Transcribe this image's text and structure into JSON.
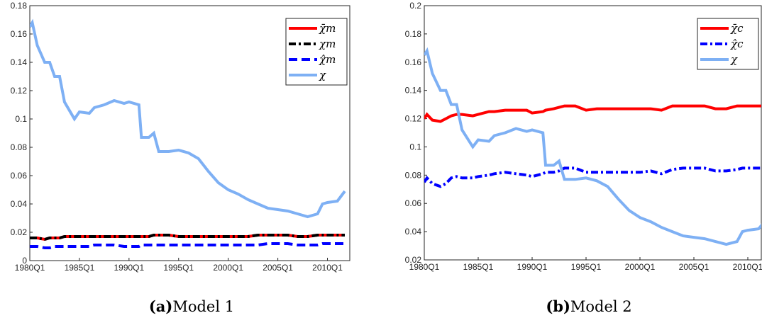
{
  "chart_data": [
    {
      "type": "line",
      "caption_label": "(a)",
      "caption": "Model 1",
      "x": [
        "1980Q1",
        "1980Q2",
        "1980Q4",
        "1981Q3",
        "1982Q1",
        "1982Q3",
        "1983Q1",
        "1983Q3",
        "1984Q3",
        "1985Q1",
        "1986Q1",
        "1986Q3",
        "1987Q3",
        "1988Q3",
        "1989Q3",
        "1990Q1",
        "1991Q1",
        "1991Q2",
        "1992Q1",
        "1992Q3",
        "1993Q1",
        "1994Q1",
        "1995Q1",
        "1996Q1",
        "1997Q1",
        "1998Q1",
        "1999Q1",
        "2000Q1",
        "2001Q1",
        "2002Q1",
        "2003Q1",
        "2004Q1",
        "2005Q1",
        "2006Q1",
        "2007Q1",
        "2008Q1",
        "2009Q1",
        "2009Q3",
        "2010Q1",
        "2011Q1",
        "2011Q4"
      ],
      "xlim": [
        "1980Q1",
        "2012Q2"
      ],
      "xticks": [
        "1980Q1",
        "1985Q1",
        "1990Q1",
        "1995Q1",
        "2000Q1",
        "2005Q1",
        "2010Q1"
      ],
      "ylim": [
        0,
        0.18
      ],
      "yticks": [
        0,
        0.02,
        0.04,
        0.06,
        0.08,
        0.1,
        0.12,
        0.14,
        0.16,
        0.18
      ],
      "legend": "northeast",
      "series": [
        {
          "name": "χ̄m",
          "color": "#ff0000",
          "style": "solid",
          "values": [
            0.016,
            0.016,
            0.016,
            0.015,
            0.016,
            0.016,
            0.016,
            0.017,
            0.017,
            0.017,
            0.017,
            0.017,
            0.017,
            0.017,
            0.017,
            0.017,
            0.017,
            0.017,
            0.017,
            0.018,
            0.018,
            0.018,
            0.017,
            0.017,
            0.017,
            0.017,
            0.017,
            0.017,
            0.017,
            0.017,
            0.018,
            0.018,
            0.018,
            0.018,
            0.017,
            0.017,
            0.018,
            0.018,
            0.018,
            0.018,
            0.018
          ]
        },
        {
          "name": "χm",
          "color": "#000000",
          "style": "dashdot",
          "values": [
            0.016,
            0.016,
            0.016,
            0.015,
            0.016,
            0.016,
            0.016,
            0.017,
            0.017,
            0.017,
            0.017,
            0.017,
            0.017,
            0.017,
            0.017,
            0.017,
            0.017,
            0.017,
            0.017,
            0.018,
            0.018,
            0.018,
            0.017,
            0.017,
            0.017,
            0.017,
            0.017,
            0.017,
            0.017,
            0.017,
            0.018,
            0.018,
            0.018,
            0.018,
            0.017,
            0.017,
            0.018,
            0.018,
            0.018,
            0.018,
            0.018
          ]
        },
        {
          "name": "χ̂m",
          "color": "#0000ff",
          "style": "dashed",
          "values": [
            0.01,
            0.01,
            0.01,
            0.009,
            0.009,
            0.01,
            0.01,
            0.01,
            0.01,
            0.01,
            0.01,
            0.011,
            0.011,
            0.011,
            0.01,
            0.01,
            0.01,
            0.011,
            0.011,
            0.011,
            0.011,
            0.011,
            0.011,
            0.011,
            0.011,
            0.011,
            0.011,
            0.011,
            0.011,
            0.011,
            0.011,
            0.012,
            0.012,
            0.012,
            0.011,
            0.011,
            0.011,
            0.012,
            0.012,
            0.012,
            0.012
          ]
        },
        {
          "name": "χ",
          "color": "#7eb0f4",
          "style": "solid",
          "values": [
            0.165,
            0.168,
            0.152,
            0.14,
            0.14,
            0.13,
            0.13,
            0.112,
            0.1,
            0.105,
            0.104,
            0.108,
            0.11,
            0.113,
            0.111,
            0.112,
            0.11,
            0.087,
            0.087,
            0.09,
            0.077,
            0.077,
            0.078,
            0.076,
            0.072,
            0.063,
            0.055,
            0.05,
            0.047,
            0.043,
            0.04,
            0.037,
            0.036,
            0.035,
            0.033,
            0.031,
            0.033,
            0.04,
            0.041,
            0.042,
            0.049
          ]
        }
      ]
    },
    {
      "type": "line",
      "caption_label": "(b)",
      "caption": "Model 2",
      "x": [
        "1980Q1",
        "1980Q2",
        "1980Q4",
        "1981Q3",
        "1982Q1",
        "1982Q3",
        "1983Q1",
        "1983Q3",
        "1984Q3",
        "1985Q1",
        "1986Q1",
        "1986Q3",
        "1987Q3",
        "1988Q3",
        "1989Q3",
        "1990Q1",
        "1991Q1",
        "1991Q2",
        "1992Q1",
        "1992Q3",
        "1993Q1",
        "1994Q1",
        "1995Q1",
        "1996Q1",
        "1997Q1",
        "1998Q1",
        "1999Q1",
        "2000Q1",
        "2001Q1",
        "2002Q1",
        "2003Q1",
        "2004Q1",
        "2005Q1",
        "2006Q1",
        "2007Q1",
        "2008Q1",
        "2009Q1",
        "2009Q3",
        "2010Q1",
        "2011Q1",
        "2011Q4"
      ],
      "xlim": [
        "1980Q1",
        "2011Q2"
      ],
      "xticks": [
        "1980Q1",
        "1985Q1",
        "1990Q1",
        "1995Q1",
        "2000Q1",
        "2005Q1",
        "2010Q1"
      ],
      "ylim": [
        0.02,
        0.2
      ],
      "yticks": [
        0.02,
        0.04,
        0.06,
        0.08,
        0.1,
        0.12,
        0.14,
        0.16,
        0.18,
        0.2
      ],
      "legend": "northeast",
      "series": [
        {
          "name": "χ̄c",
          "color": "#ff0000",
          "style": "solid",
          "values": [
            0.12,
            0.123,
            0.119,
            0.118,
            0.12,
            0.122,
            0.123,
            0.123,
            0.122,
            0.123,
            0.125,
            0.125,
            0.126,
            0.126,
            0.126,
            0.124,
            0.125,
            0.126,
            0.127,
            0.128,
            0.129,
            0.129,
            0.126,
            0.127,
            0.127,
            0.127,
            0.127,
            0.127,
            0.127,
            0.126,
            0.129,
            0.129,
            0.129,
            0.129,
            0.127,
            0.127,
            0.129,
            0.129,
            0.129,
            0.129,
            0.129
          ]
        },
        {
          "name": "χ̂c",
          "color": "#0000ff",
          "style": "dashdot",
          "values": [
            0.075,
            0.078,
            0.074,
            0.072,
            0.074,
            0.078,
            0.079,
            0.078,
            0.078,
            0.079,
            0.08,
            0.081,
            0.082,
            0.081,
            0.08,
            0.079,
            0.081,
            0.082,
            0.082,
            0.083,
            0.085,
            0.085,
            0.082,
            0.082,
            0.082,
            0.082,
            0.082,
            0.082,
            0.083,
            0.081,
            0.084,
            0.085,
            0.085,
            0.085,
            0.083,
            0.083,
            0.084,
            0.085,
            0.085,
            0.085,
            0.085
          ]
        },
        {
          "name": "χ",
          "color": "#7eb0f4",
          "style": "solid",
          "values": [
            0.165,
            0.168,
            0.152,
            0.14,
            0.14,
            0.13,
            0.13,
            0.112,
            0.1,
            0.105,
            0.104,
            0.108,
            0.11,
            0.113,
            0.111,
            0.112,
            0.11,
            0.087,
            0.087,
            0.09,
            0.077,
            0.077,
            0.078,
            0.076,
            0.072,
            0.063,
            0.055,
            0.05,
            0.047,
            0.043,
            0.04,
            0.037,
            0.036,
            0.035,
            0.033,
            0.031,
            0.033,
            0.04,
            0.041,
            0.042,
            0.049
          ]
        }
      ]
    }
  ]
}
